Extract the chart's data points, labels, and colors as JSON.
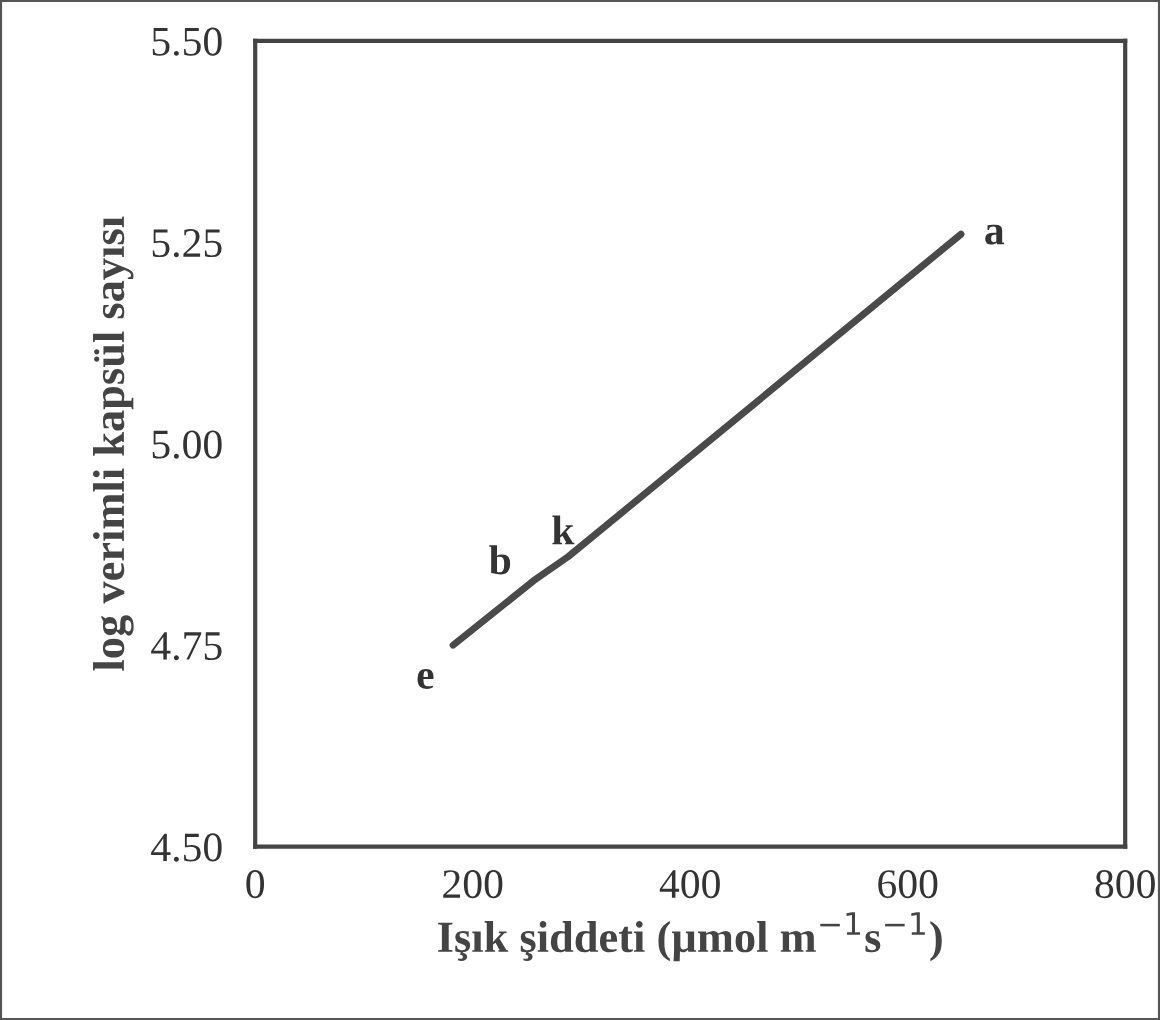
{
  "chart_data": {
    "type": "line",
    "xlabel": "Işık şiddeti (µmol m$^{−1}$s$^{−1}$)",
    "ylabel": "log verimli kapsül sayısı",
    "x": [
      182,
      256,
      288,
      649
    ],
    "series": [
      {
        "color": "#4a4a4a",
        "values": [
          4.75,
          4.83,
          4.86,
          5.26
        ]
      }
    ],
    "annotations": [
      {
        "text": "e",
        "x": 182,
        "y": 4.75
      },
      {
        "text": "b",
        "x": 256,
        "y": 4.83
      },
      {
        "text": "k",
        "x": 288,
        "y": 4.86
      },
      {
        "text": "a",
        "x": 649,
        "y": 5.26
      }
    ],
    "xlim": [
      0,
      800
    ],
    "xticks": [
      0,
      200,
      400,
      600,
      800
    ],
    "ylim": [
      4.5,
      5.5
    ],
    "yticks": [
      {
        "value": 4.5,
        "label": "4.50"
      },
      {
        "value": 4.75,
        "label": "4.75"
      },
      {
        "value": 5.0,
        "label": "5.00"
      },
      {
        "value": 5.25,
        "label": "5.25"
      },
      {
        "value": 5.5,
        "label": "5.50"
      }
    ],
    "grid": false,
    "marker": "none",
    "line_style": "solid"
  }
}
